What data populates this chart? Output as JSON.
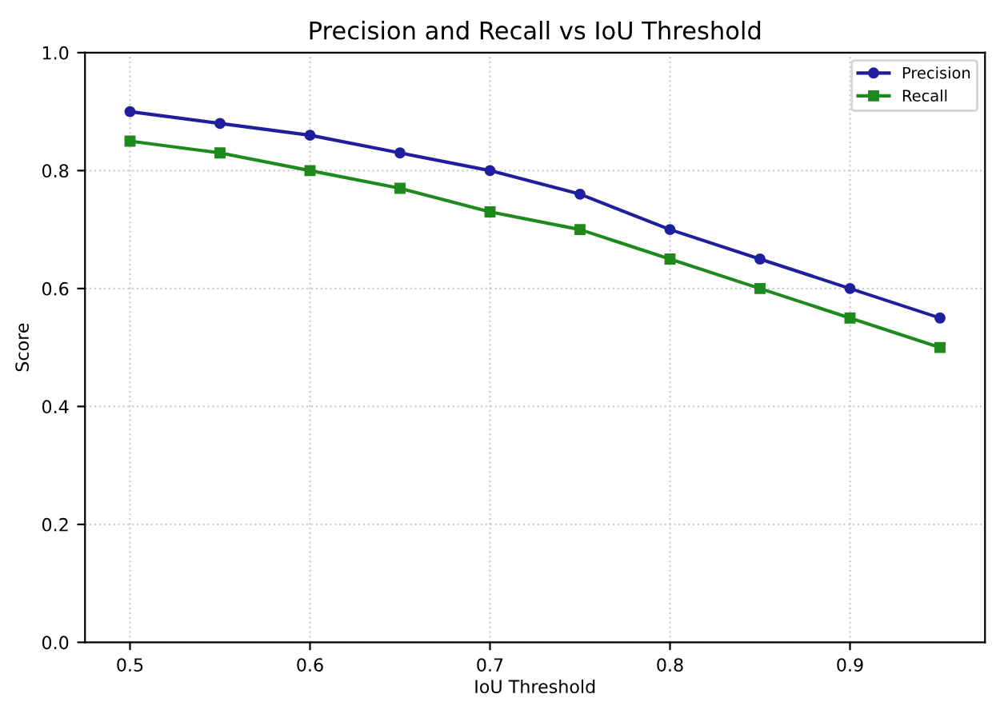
{
  "chart_data": {
    "type": "line",
    "title": "Precision and Recall vs IoU Threshold",
    "xlabel": "IoU Threshold",
    "ylabel": "Score",
    "x": [
      0.5,
      0.55,
      0.6,
      0.65,
      0.7,
      0.75,
      0.8,
      0.85,
      0.9,
      0.95
    ],
    "series": [
      {
        "name": "Precision",
        "color": "#1f1f9e",
        "marker": "circle",
        "values": [
          0.9,
          0.88,
          0.86,
          0.83,
          0.8,
          0.76,
          0.7,
          0.65,
          0.6,
          0.55
        ]
      },
      {
        "name": "Recall",
        "color": "#1e8a1e",
        "marker": "square",
        "values": [
          0.85,
          0.83,
          0.8,
          0.77,
          0.73,
          0.7,
          0.65,
          0.6,
          0.55,
          0.5
        ]
      }
    ],
    "xlim": [
      0.475,
      0.975
    ],
    "xticks": [
      0.5,
      0.6,
      0.7,
      0.8,
      0.9
    ],
    "ylim": [
      0,
      1
    ],
    "yticks": [
      {
        "value": 0,
        "label": "0.0"
      },
      0.2,
      0.4,
      0.6,
      0.8,
      {
        "value": 1,
        "label": "1.0"
      }
    ],
    "grid": true,
    "legend": "top right",
    "line_style": "solid"
  }
}
